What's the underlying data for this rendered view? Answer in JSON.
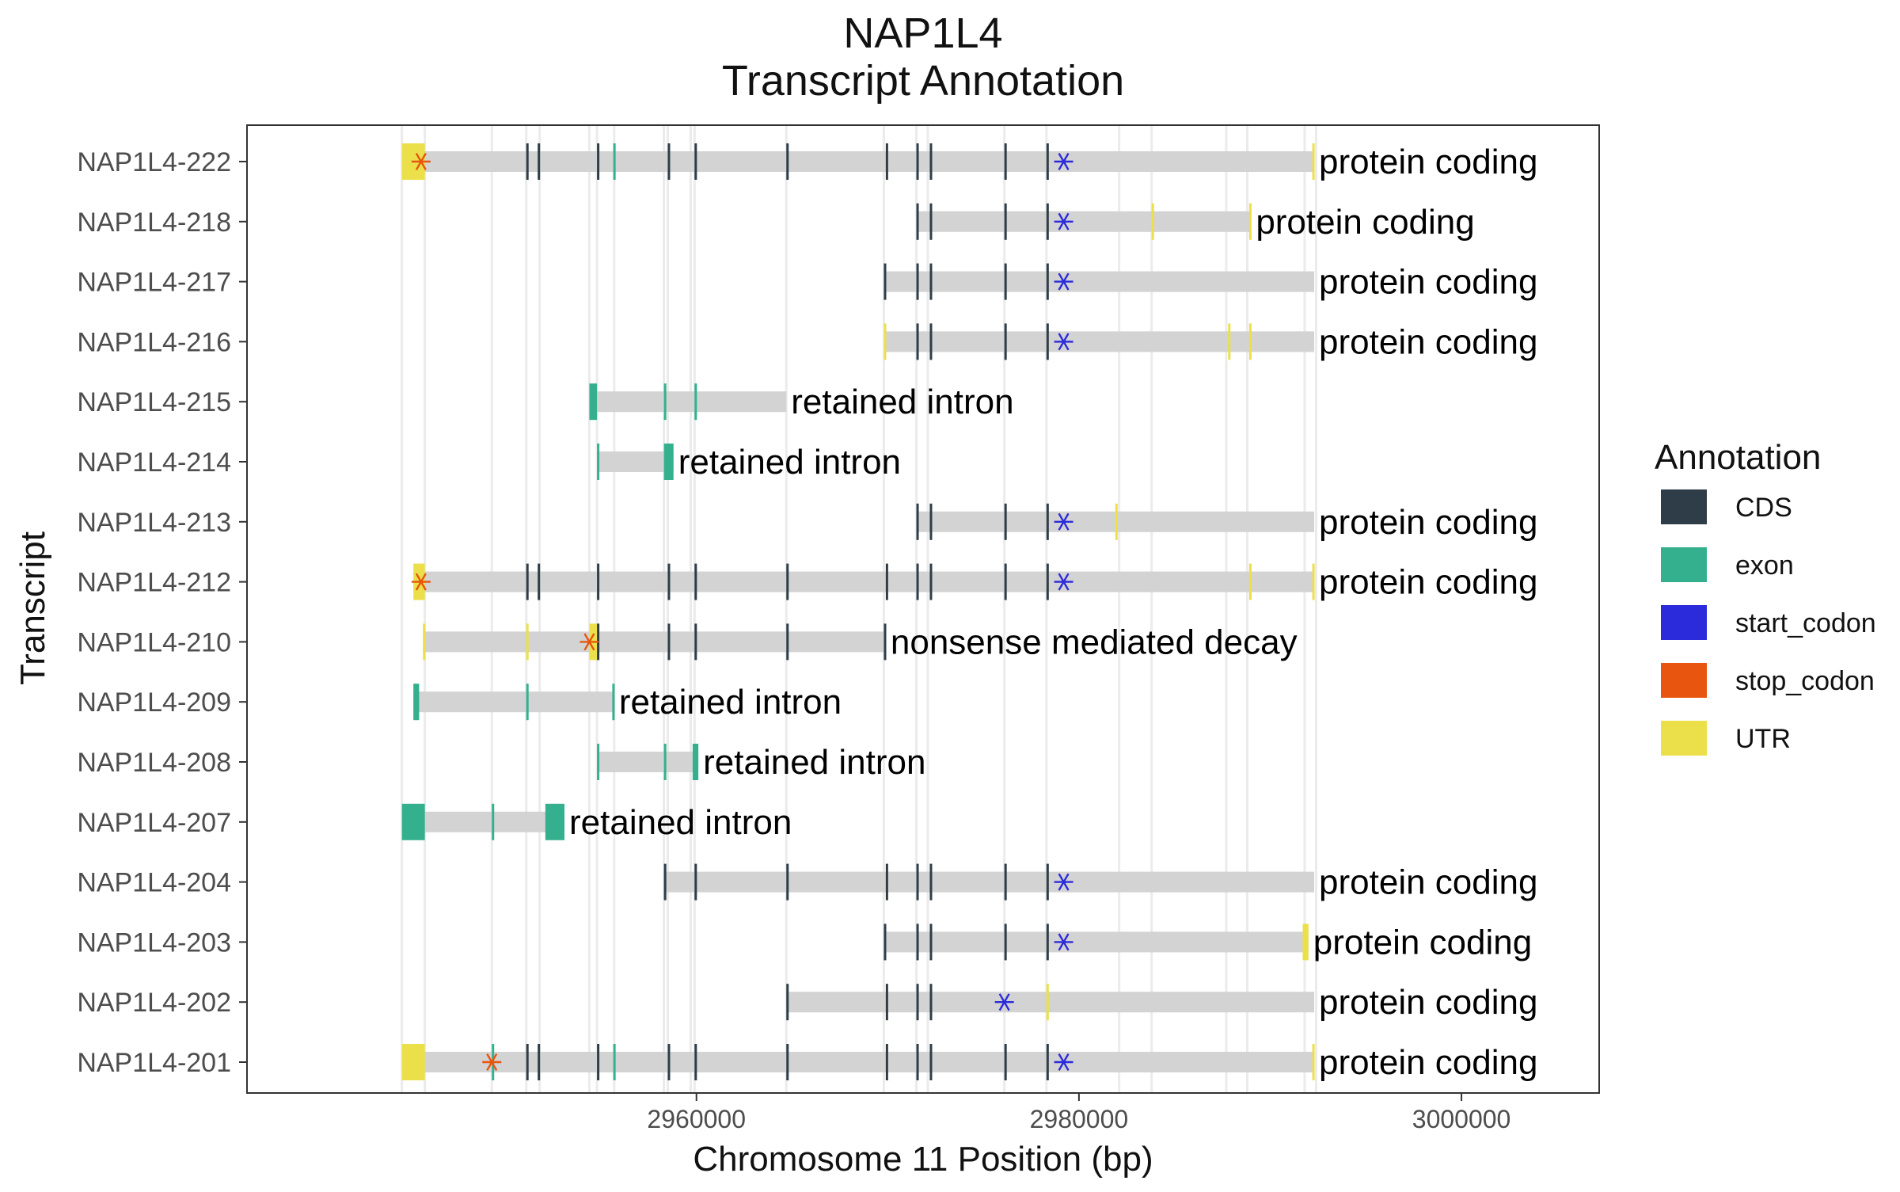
{
  "chart_data": {
    "type": "gantt",
    "title": [
      "NAP1L4",
      "Transcript Annotation"
    ],
    "xlabel": "Chromosome 11 Position (bp)",
    "ylabel": "Transcript",
    "xlim": [
      2936500,
      3007200
    ],
    "xticks": [
      2960000,
      2980000,
      3000000
    ],
    "xtick_labels": [
      "2960000",
      "2980000",
      "3000000"
    ],
    "legend": {
      "title": "Annotation",
      "position": "right",
      "items": [
        {
          "key": "CDS",
          "label": "CDS",
          "color": "#2e3d47"
        },
        {
          "key": "exon",
          "label": "exon",
          "color": "#35b08e"
        },
        {
          "key": "start_codon",
          "label": "start_codon",
          "color": "#2b2bdb"
        },
        {
          "key": "stop_codon",
          "label": "stop_codon",
          "color": "#e8550e"
        },
        {
          "key": "UTR",
          "label": "UTR",
          "color": "#ebe04a"
        }
      ]
    },
    "colors": {
      "intron": "#d3d3d3",
      "grid": "#ebebeb",
      "panel_border": "#333333"
    },
    "background_lines": [
      2944600,
      2945800,
      2949300,
      2951100,
      2951800,
      2954400,
      2954800,
      2955700,
      2958300,
      2958500,
      2959700,
      2959900,
      2964700,
      2969800,
      2971500,
      2972100,
      2976100,
      2978300,
      2982100,
      2983800,
      2987700,
      2988800,
      2991800,
      2992400
    ],
    "transcripts": [
      {
        "name": "NAP1L4-222",
        "start": 2944600,
        "end": 2992300,
        "biotype": "protein coding",
        "features": [
          {
            "type": "UTR",
            "start": 2944600,
            "end": 2945800
          },
          {
            "type": "CDS",
            "start": 2951100,
            "end": 2951200
          },
          {
            "type": "CDS",
            "start": 2951700,
            "end": 2951800
          },
          {
            "type": "CDS",
            "start": 2954800,
            "end": 2954900
          },
          {
            "type": "exon",
            "start": 2955650,
            "end": 2955750
          },
          {
            "type": "CDS",
            "start": 2958500,
            "end": 2958600
          },
          {
            "type": "CDS",
            "start": 2959900,
            "end": 2960000
          },
          {
            "type": "CDS",
            "start": 2964700,
            "end": 2964800
          },
          {
            "type": "CDS",
            "start": 2969900,
            "end": 2970000
          },
          {
            "type": "CDS",
            "start": 2971500,
            "end": 2971600
          },
          {
            "type": "CDS",
            "start": 2972200,
            "end": 2972300
          },
          {
            "type": "CDS",
            "start": 2976100,
            "end": 2976200
          },
          {
            "type": "CDS",
            "start": 2978300,
            "end": 2978400
          },
          {
            "type": "UTR",
            "start": 2992200,
            "end": 2992300
          }
        ],
        "start_codon": 2979200,
        "stop_codon": 2945600
      },
      {
        "name": "NAP1L4-218",
        "start": 2971500,
        "end": 2989000,
        "biotype": "protein coding",
        "features": [
          {
            "type": "CDS",
            "start": 2971500,
            "end": 2971600
          },
          {
            "type": "CDS",
            "start": 2972200,
            "end": 2972300
          },
          {
            "type": "CDS",
            "start": 2976100,
            "end": 2976200
          },
          {
            "type": "CDS",
            "start": 2978300,
            "end": 2978400
          },
          {
            "type": "UTR",
            "start": 2983800,
            "end": 2983900
          },
          {
            "type": "UTR",
            "start": 2988900,
            "end": 2989000
          }
        ],
        "start_codon": 2979200,
        "stop_codon": null
      },
      {
        "name": "NAP1L4-217",
        "start": 2969800,
        "end": 2992300,
        "biotype": "protein coding",
        "features": [
          {
            "type": "CDS",
            "start": 2969800,
            "end": 2969900
          },
          {
            "type": "CDS",
            "start": 2971500,
            "end": 2971600
          },
          {
            "type": "CDS",
            "start": 2972200,
            "end": 2972300
          },
          {
            "type": "CDS",
            "start": 2976100,
            "end": 2976200
          },
          {
            "type": "CDS",
            "start": 2978300,
            "end": 2978400
          }
        ],
        "start_codon": 2979200,
        "stop_codon": null
      },
      {
        "name": "NAP1L4-216",
        "start": 2969800,
        "end": 2992300,
        "biotype": "protein coding",
        "features": [
          {
            "type": "UTR",
            "start": 2969800,
            "end": 2969900
          },
          {
            "type": "CDS",
            "start": 2971500,
            "end": 2971600
          },
          {
            "type": "CDS",
            "start": 2972200,
            "end": 2972300
          },
          {
            "type": "CDS",
            "start": 2976100,
            "end": 2976200
          },
          {
            "type": "CDS",
            "start": 2978300,
            "end": 2978400
          },
          {
            "type": "UTR",
            "start": 2987800,
            "end": 2987900
          },
          {
            "type": "UTR",
            "start": 2988900,
            "end": 2989000
          }
        ],
        "start_codon": 2979200,
        "stop_codon": null
      },
      {
        "name": "NAP1L4-215",
        "start": 2954400,
        "end": 2964700,
        "biotype": "retained intron",
        "features": [
          {
            "type": "exon",
            "start": 2954400,
            "end": 2954800
          },
          {
            "type": "exon",
            "start": 2958300,
            "end": 2958400
          },
          {
            "type": "exon",
            "start": 2959900,
            "end": 2960000
          }
        ],
        "start_codon": null,
        "stop_codon": null
      },
      {
        "name": "NAP1L4-214",
        "start": 2954800,
        "end": 2958800,
        "biotype": "retained intron",
        "features": [
          {
            "type": "exon",
            "start": 2954800,
            "end": 2954900
          },
          {
            "type": "exon",
            "start": 2958300,
            "end": 2958800
          }
        ],
        "start_codon": null,
        "stop_codon": null
      },
      {
        "name": "NAP1L4-213",
        "start": 2971500,
        "end": 2992300,
        "biotype": "protein coding",
        "features": [
          {
            "type": "CDS",
            "start": 2971500,
            "end": 2971600
          },
          {
            "type": "CDS",
            "start": 2972200,
            "end": 2972300
          },
          {
            "type": "CDS",
            "start": 2976100,
            "end": 2976200
          },
          {
            "type": "CDS",
            "start": 2978300,
            "end": 2978400
          },
          {
            "type": "UTR",
            "start": 2981900,
            "end": 2982000
          }
        ],
        "start_codon": 2979200,
        "stop_codon": null
      },
      {
        "name": "NAP1L4-212",
        "start": 2945200,
        "end": 2992300,
        "biotype": "protein coding",
        "features": [
          {
            "type": "UTR",
            "start": 2945200,
            "end": 2945800
          },
          {
            "type": "CDS",
            "start": 2951100,
            "end": 2951200
          },
          {
            "type": "CDS",
            "start": 2951700,
            "end": 2951800
          },
          {
            "type": "CDS",
            "start": 2954800,
            "end": 2954900
          },
          {
            "type": "CDS",
            "start": 2958500,
            "end": 2958600
          },
          {
            "type": "CDS",
            "start": 2959900,
            "end": 2960000
          },
          {
            "type": "CDS",
            "start": 2964700,
            "end": 2964800
          },
          {
            "type": "CDS",
            "start": 2969900,
            "end": 2970000
          },
          {
            "type": "CDS",
            "start": 2971500,
            "end": 2971600
          },
          {
            "type": "CDS",
            "start": 2972200,
            "end": 2972300
          },
          {
            "type": "CDS",
            "start": 2976100,
            "end": 2976200
          },
          {
            "type": "CDS",
            "start": 2978300,
            "end": 2978400
          },
          {
            "type": "UTR",
            "start": 2988900,
            "end": 2989000
          },
          {
            "type": "UTR",
            "start": 2992200,
            "end": 2992300
          }
        ],
        "start_codon": 2979200,
        "stop_codon": 2945600
      },
      {
        "name": "NAP1L4-210",
        "start": 2945700,
        "end": 2969900,
        "biotype": "nonsense mediated decay",
        "features": [
          {
            "type": "UTR",
            "start": 2945700,
            "end": 2945800
          },
          {
            "type": "UTR",
            "start": 2951100,
            "end": 2951200
          },
          {
            "type": "UTR",
            "start": 2954400,
            "end": 2954800
          },
          {
            "type": "CDS",
            "start": 2954800,
            "end": 2954900
          },
          {
            "type": "CDS",
            "start": 2958500,
            "end": 2958600
          },
          {
            "type": "CDS",
            "start": 2959900,
            "end": 2960000
          },
          {
            "type": "CDS",
            "start": 2964700,
            "end": 2964800
          },
          {
            "type": "CDS",
            "start": 2969800,
            "end": 2969900
          }
        ],
        "start_codon": null,
        "stop_codon": 2954400
      },
      {
        "name": "NAP1L4-209",
        "start": 2945200,
        "end": 2955700,
        "biotype": "retained intron",
        "features": [
          {
            "type": "exon",
            "start": 2945200,
            "end": 2945500
          },
          {
            "type": "exon",
            "start": 2951100,
            "end": 2951200
          },
          {
            "type": "exon",
            "start": 2955600,
            "end": 2955700
          }
        ],
        "start_codon": null,
        "stop_codon": null
      },
      {
        "name": "NAP1L4-208",
        "start": 2954800,
        "end": 2960100,
        "biotype": "retained intron",
        "features": [
          {
            "type": "exon",
            "start": 2954800,
            "end": 2954900
          },
          {
            "type": "exon",
            "start": 2958300,
            "end": 2958400
          },
          {
            "type": "exon",
            "start": 2959800,
            "end": 2960100
          }
        ],
        "start_codon": null,
        "stop_codon": null
      },
      {
        "name": "NAP1L4-207",
        "start": 2944600,
        "end": 2953100,
        "biotype": "retained intron",
        "features": [
          {
            "type": "exon",
            "start": 2944600,
            "end": 2945800
          },
          {
            "type": "exon",
            "start": 2949300,
            "end": 2949400
          },
          {
            "type": "exon",
            "start": 2952100,
            "end": 2953100
          }
        ],
        "start_codon": null,
        "stop_codon": null
      },
      {
        "name": "NAP1L4-204",
        "start": 2958300,
        "end": 2992300,
        "biotype": "protein coding",
        "features": [
          {
            "type": "CDS",
            "start": 2958300,
            "end": 2958400
          },
          {
            "type": "CDS",
            "start": 2959900,
            "end": 2960000
          },
          {
            "type": "CDS",
            "start": 2964700,
            "end": 2964800
          },
          {
            "type": "CDS",
            "start": 2969900,
            "end": 2970000
          },
          {
            "type": "CDS",
            "start": 2971500,
            "end": 2971600
          },
          {
            "type": "CDS",
            "start": 2972200,
            "end": 2972300
          },
          {
            "type": "CDS",
            "start": 2976100,
            "end": 2976200
          },
          {
            "type": "CDS",
            "start": 2978300,
            "end": 2978400
          }
        ],
        "start_codon": 2979200,
        "stop_codon": null
      },
      {
        "name": "NAP1L4-203",
        "start": 2969800,
        "end": 2992000,
        "biotype": "protein coding",
        "features": [
          {
            "type": "CDS",
            "start": 2969800,
            "end": 2969900
          },
          {
            "type": "CDS",
            "start": 2971500,
            "end": 2971600
          },
          {
            "type": "CDS",
            "start": 2972200,
            "end": 2972300
          },
          {
            "type": "CDS",
            "start": 2976100,
            "end": 2976200
          },
          {
            "type": "CDS",
            "start": 2978300,
            "end": 2978400
          },
          {
            "type": "UTR",
            "start": 2991700,
            "end": 2992000
          }
        ],
        "start_codon": 2979200,
        "stop_codon": null
      },
      {
        "name": "NAP1L4-202",
        "start": 2964700,
        "end": 2992300,
        "biotype": "protein coding",
        "features": [
          {
            "type": "CDS",
            "start": 2964700,
            "end": 2964800
          },
          {
            "type": "CDS",
            "start": 2969900,
            "end": 2970000
          },
          {
            "type": "CDS",
            "start": 2971500,
            "end": 2971600
          },
          {
            "type": "CDS",
            "start": 2972200,
            "end": 2972300
          },
          {
            "type": "UTR",
            "start": 2978300,
            "end": 2978400
          }
        ],
        "start_codon": 2976100,
        "stop_codon": null
      },
      {
        "name": "NAP1L4-201",
        "start": 2944600,
        "end": 2992300,
        "biotype": "protein coding",
        "features": [
          {
            "type": "UTR",
            "start": 2944600,
            "end": 2945800
          },
          {
            "type": "exon",
            "start": 2949300,
            "end": 2949400
          },
          {
            "type": "CDS",
            "start": 2951100,
            "end": 2951200
          },
          {
            "type": "CDS",
            "start": 2951700,
            "end": 2951800
          },
          {
            "type": "CDS",
            "start": 2954800,
            "end": 2954900
          },
          {
            "type": "exon",
            "start": 2955650,
            "end": 2955750
          },
          {
            "type": "CDS",
            "start": 2958500,
            "end": 2958600
          },
          {
            "type": "CDS",
            "start": 2959900,
            "end": 2960000
          },
          {
            "type": "CDS",
            "start": 2964700,
            "end": 2964800
          },
          {
            "type": "CDS",
            "start": 2969900,
            "end": 2970000
          },
          {
            "type": "CDS",
            "start": 2971500,
            "end": 2971600
          },
          {
            "type": "CDS",
            "start": 2972200,
            "end": 2972300
          },
          {
            "type": "CDS",
            "start": 2976100,
            "end": 2976200
          },
          {
            "type": "CDS",
            "start": 2978300,
            "end": 2978400
          },
          {
            "type": "UTR",
            "start": 2992200,
            "end": 2992300
          }
        ],
        "start_codon": 2979200,
        "stop_codon": 2949300
      }
    ]
  }
}
